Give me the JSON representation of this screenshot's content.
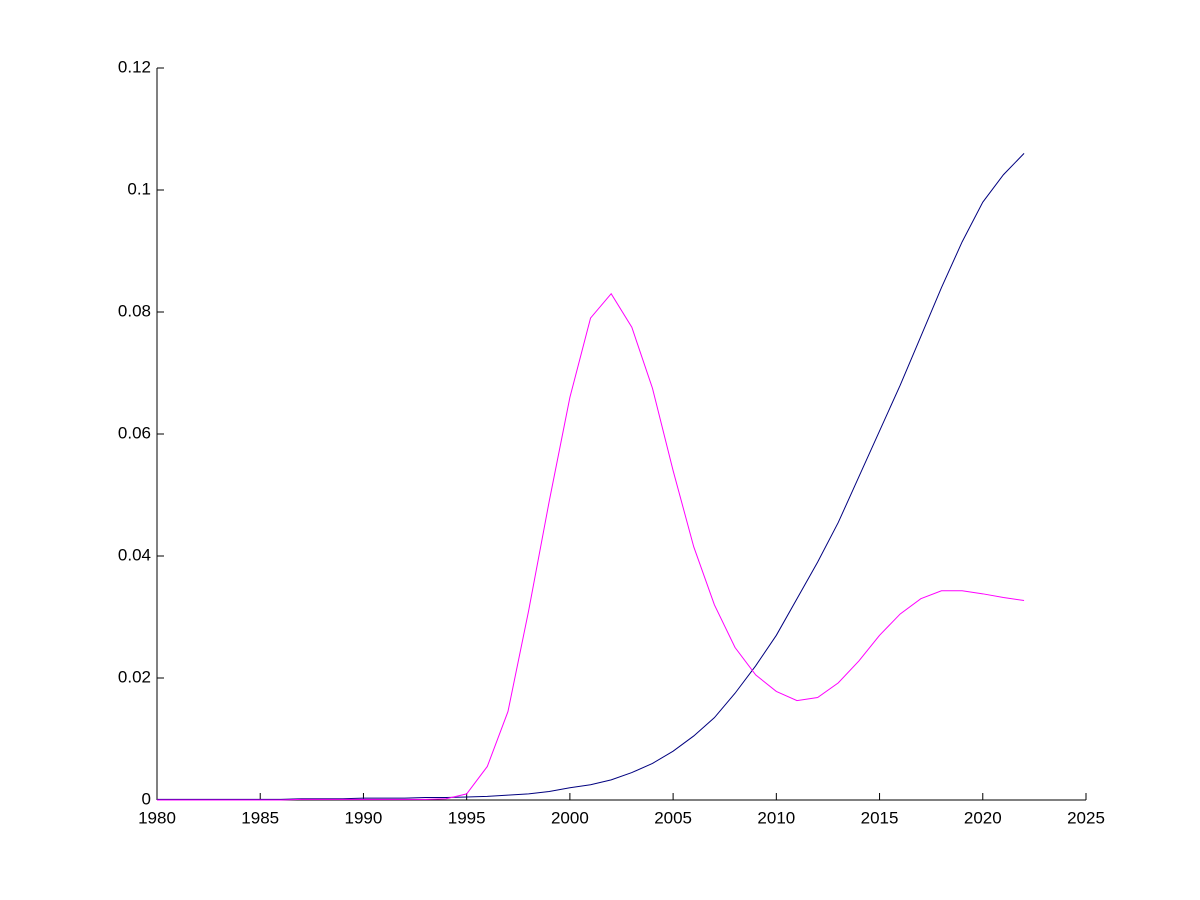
{
  "chart_data": {
    "type": "line",
    "x": [
      1980,
      1981,
      1982,
      1983,
      1984,
      1985,
      1986,
      1987,
      1988,
      1989,
      1990,
      1991,
      1992,
      1993,
      1994,
      1995,
      1996,
      1997,
      1998,
      1999,
      2000,
      2001,
      2002,
      2003,
      2004,
      2005,
      2006,
      2007,
      2008,
      2009,
      2010,
      2011,
      2012,
      2013,
      2014,
      2015,
      2016,
      2017,
      2018,
      2019,
      2020,
      2021,
      2022
    ],
    "series": [
      {
        "color": "#00007f",
        "values": [
          0.0001,
          0.0001,
          0.0001,
          0.0001,
          0.0001,
          0.0001,
          0.0001,
          0.0002,
          0.0002,
          0.0002,
          0.0003,
          0.0003,
          0.0003,
          0.0004,
          0.0004,
          0.0005,
          0.0006,
          0.0008,
          0.001,
          0.0014,
          0.002,
          0.0025,
          0.0033,
          0.0045,
          0.006,
          0.008,
          0.0105,
          0.0135,
          0.0175,
          0.022,
          0.027,
          0.033,
          0.039,
          0.0455,
          0.053,
          0.0605,
          0.068,
          0.076,
          0.084,
          0.0915,
          0.098,
          0.1025,
          0.106
        ]
      },
      {
        "color": "#ff00ff",
        "values": [
          0,
          0,
          0,
          0,
          0,
          0,
          0,
          0.0001,
          0.0001,
          0.0001,
          0.0001,
          0.0001,
          0.0001,
          0.0001,
          0.0002,
          0.001,
          0.0055,
          0.0145,
          0.031,
          0.049,
          0.066,
          0.079,
          0.083,
          0.0775,
          0.0675,
          0.054,
          0.0415,
          0.032,
          0.025,
          0.0205,
          0.0178,
          0.0163,
          0.0168,
          0.0192,
          0.0228,
          0.027,
          0.0305,
          0.033,
          0.0343,
          0.0343,
          0.0338,
          0.0332,
          0.0327
        ]
      }
    ],
    "xlim": [
      1980,
      2025
    ],
    "xticks": [
      1980,
      1985,
      1990,
      1995,
      2000,
      2005,
      2010,
      2015,
      2020,
      2025
    ],
    "ylim": [
      0,
      0.12
    ],
    "yticks": [
      0,
      0.02,
      0.04,
      0.06,
      0.08,
      0.1,
      0.12
    ],
    "grid": false
  }
}
